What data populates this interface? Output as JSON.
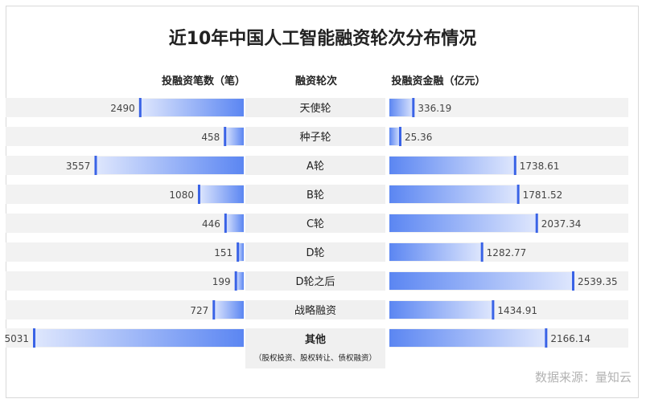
{
  "title": "近10年中国人工智能融资轮次分布情况",
  "source": "数据来源：量知云",
  "colors": {
    "bar_light": "#dfe7fd",
    "bar_dark": "#5b86f2",
    "marker": "#3a63e6",
    "track": "#f2f2f2",
    "label_bg": "#f0f0f0",
    "text": "#222222",
    "value_text": "#444444"
  },
  "chart_data": {
    "type": "bar",
    "title": "近10年中国人工智能融资轮次分布情况",
    "categories": [
      "天使轮",
      "种子轮",
      "A轮",
      "B轮",
      "C轮",
      "D轮",
      "D轮之后",
      "战略融资",
      "其他"
    ],
    "category_notes": [
      "",
      "",
      "",
      "",
      "",
      "",
      "",
      "",
      "（股权投资、股权转让、债权融资）"
    ],
    "series": [
      {
        "name": "投融资笔数（笔）",
        "values": [
          2490,
          458,
          3557,
          1080,
          446,
          151,
          199,
          727,
          5031
        ],
        "value_labels": [
          "2490",
          "458",
          "3557",
          "1080",
          "446",
          "151",
          "199",
          "727",
          "5031"
        ],
        "max": 5031
      },
      {
        "name": "投融资金融（亿元）",
        "values": [
          336.19,
          25.36,
          1738.61,
          1781.52,
          2037.34,
          1282.77,
          2539.35,
          1434.91,
          2166.14
        ],
        "value_labels": [
          "336.19",
          "25.36",
          "1738.61",
          "1781.52",
          "2037.34",
          "1282.77",
          "2539.35",
          "1434.91",
          "2166.14"
        ],
        "max": 2539.35
      }
    ],
    "center_header": "融资轮次"
  }
}
